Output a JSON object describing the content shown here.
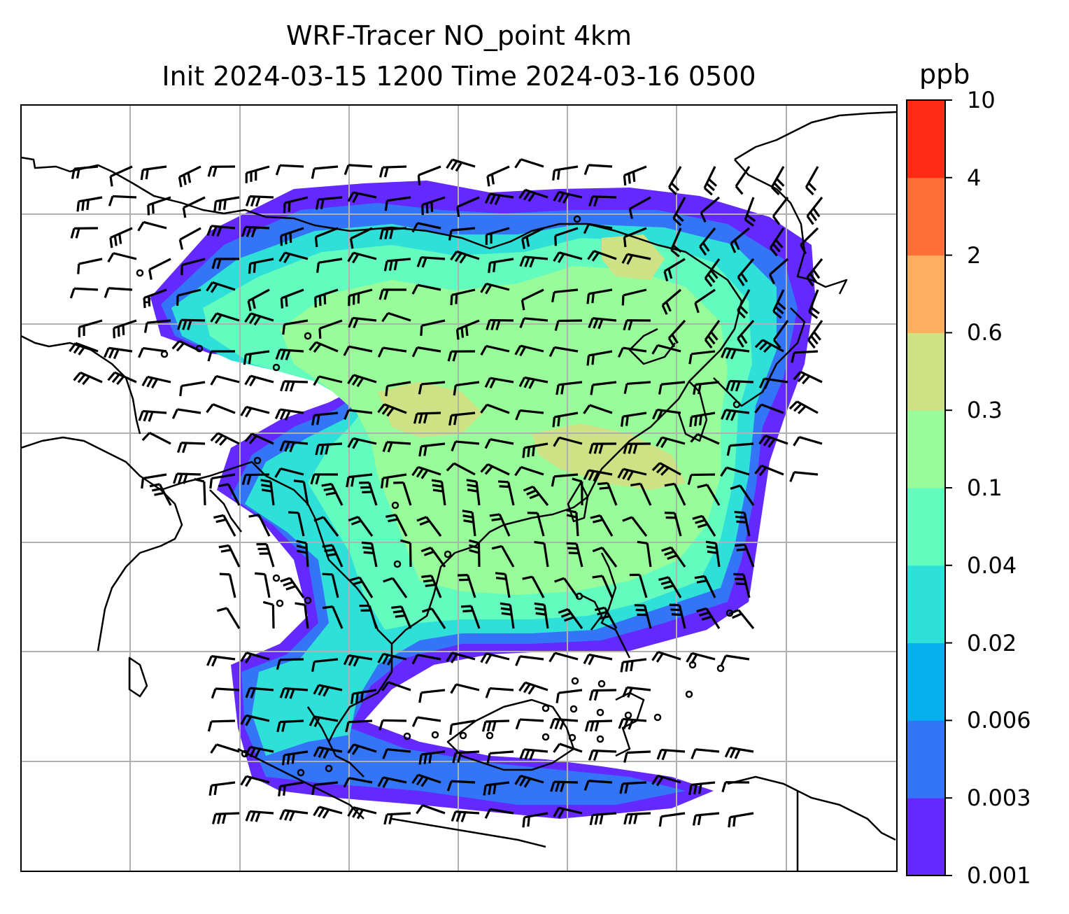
{
  "title_line1": "WRF-Tracer NO_point 4km",
  "title_line2": "Init 2024-03-15 1200 Time 2024-03-16 0500",
  "colorbar": {
    "unit": "ppb",
    "levels": [
      "0.001",
      "0.003",
      "0.006",
      "0.02",
      "0.04",
      "0.1",
      "0.3",
      "0.6",
      "2",
      "4",
      "10"
    ],
    "colors": [
      "#6329fe",
      "#3474f6",
      "#05b0ec",
      "#2fe0d8",
      "#64fbbf",
      "#98fc9a",
      "#cee185",
      "#fdae61",
      "#fd6f39",
      "#fe2a15"
    ]
  },
  "map": {
    "plume_colors": {
      "lowest": "#6329fe",
      "low": "#3474f6",
      "mid": "#2fe0d8",
      "midhigh": "#64fbbf",
      "high": "#98fc9a",
      "peak": "#cee185"
    },
    "gridline_color": "#b0b0b0",
    "coastline_color": "#000000",
    "wind_barb_color": "#000000"
  }
}
